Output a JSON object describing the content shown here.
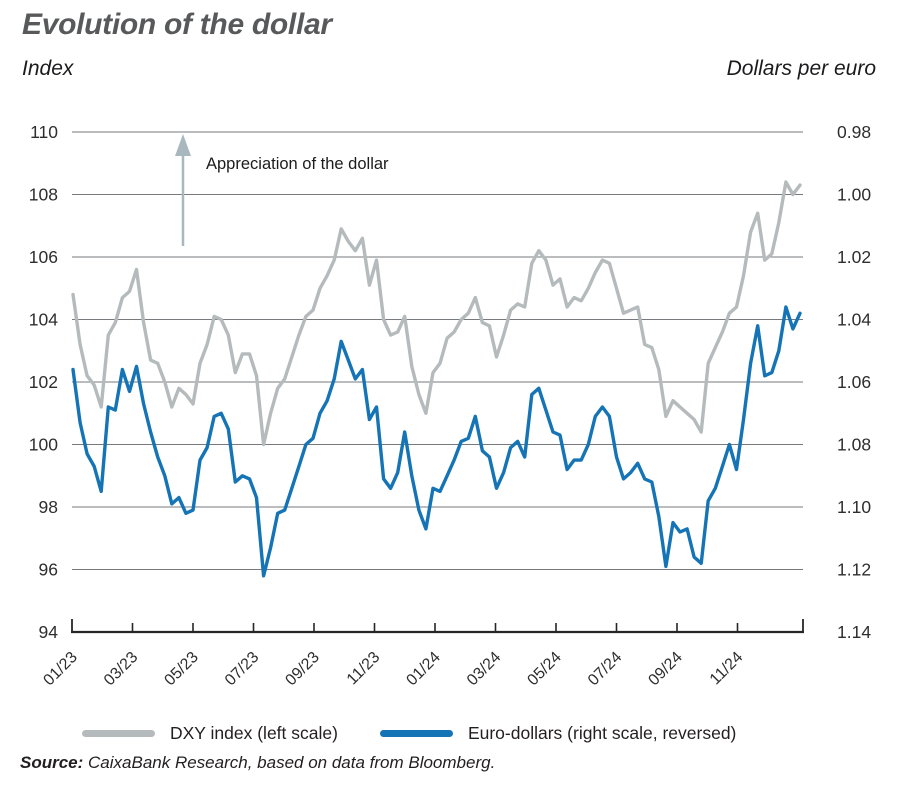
{
  "header": {
    "title": "Evolution of the dollar",
    "left_axis_title": "Index",
    "right_axis_title": "Dollars per euro"
  },
  "annotation": {
    "text": "Appreciation of the dollar"
  },
  "legend": [
    {
      "label": "DXY index (left scale)",
      "color": "#b5bbbd"
    },
    {
      "label": "Euro-dollars (right scale, reversed)",
      "color": "#1574b6"
    }
  ],
  "source": {
    "prefix": "Source:",
    "text": " CaixaBank Research, based on data from Bloomberg."
  },
  "colors": {
    "title": "#58595b",
    "text": "#231f20",
    "grid": "#77797c",
    "axis": "#262626",
    "arrow": "#a9b8bf",
    "series_gray": "#b5bbbd",
    "series_blue": "#1574b6"
  },
  "chart_data": {
    "type": "line",
    "title": "Evolution of the dollar",
    "grid": "horizontal",
    "legend_position": "bottom",
    "x_tick_labels": [
      "01/23",
      "03/23",
      "05/23",
      "07/23",
      "09/23",
      "11/23",
      "01/24",
      "03/24",
      "05/24",
      "07/24",
      "09/24",
      "11/24"
    ],
    "x_range": [
      "2023-01",
      "2024-12"
    ],
    "x_cadence": "weekly",
    "left_axis": {
      "label": "Index",
      "range": [
        94,
        110
      ],
      "ticks": [
        110,
        108,
        106,
        104,
        102,
        100,
        98,
        96,
        94
      ]
    },
    "right_axis": {
      "label": "Dollars per euro",
      "range": [
        0.98,
        1.14
      ],
      "reversed": true,
      "ticks": [
        "0.98",
        "1.00",
        "1.02",
        "1.04",
        "1.06",
        "1.08",
        "1.10",
        "1.12",
        "1.14"
      ]
    },
    "annotations": [
      {
        "text": "Appreciation of the dollar",
        "arrow": "up"
      }
    ],
    "series": [
      {
        "name": "DXY index (left scale)",
        "axis": "left",
        "color": "#b5bbbd",
        "values": [
          104.8,
          103.2,
          102.2,
          101.9,
          101.2,
          103.5,
          103.9,
          104.7,
          104.9,
          105.6,
          103.9,
          102.7,
          102.6,
          102.0,
          101.2,
          101.8,
          101.6,
          101.3,
          102.6,
          103.2,
          104.1,
          104.0,
          103.5,
          102.3,
          102.9,
          102.9,
          102.2,
          100.0,
          101.0,
          101.8,
          102.1,
          102.8,
          103.5,
          104.1,
          104.3,
          105.0,
          105.4,
          105.9,
          106.9,
          106.5,
          106.2,
          106.6,
          105.1,
          105.9,
          104.0,
          103.5,
          103.6,
          104.1,
          102.5,
          101.6,
          101.0,
          102.3,
          102.6,
          103.4,
          103.6,
          104.0,
          104.2,
          104.7,
          103.9,
          103.8,
          102.8,
          103.5,
          104.3,
          104.5,
          104.4,
          105.8,
          106.2,
          105.9,
          105.1,
          105.3,
          104.4,
          104.7,
          104.6,
          105.0,
          105.5,
          105.9,
          105.8,
          105.0,
          104.2,
          104.3,
          104.4,
          103.2,
          103.1,
          102.4,
          100.9,
          101.4,
          101.2,
          101.0,
          100.8,
          100.4,
          102.6,
          103.1,
          103.6,
          104.2,
          104.4,
          105.4,
          106.8,
          107.4,
          105.9,
          106.1,
          107.1,
          108.4,
          108.0,
          108.3
        ]
      },
      {
        "name": "Euro-dollars (right scale, reversed)",
        "axis": "right",
        "color": "#1574b6",
        "values": [
          1.056,
          1.073,
          1.083,
          1.087,
          1.095,
          1.068,
          1.069,
          1.056,
          1.063,
          1.055,
          1.067,
          1.076,
          1.084,
          1.09,
          1.099,
          1.097,
          1.102,
          1.101,
          1.085,
          1.081,
          1.071,
          1.07,
          1.075,
          1.092,
          1.09,
          1.091,
          1.097,
          1.122,
          1.113,
          1.102,
          1.101,
          1.094,
          1.087,
          1.08,
          1.078,
          1.07,
          1.066,
          1.059,
          1.047,
          1.053,
          1.059,
          1.056,
          1.072,
          1.068,
          1.091,
          1.094,
          1.089,
          1.076,
          1.09,
          1.101,
          1.107,
          1.094,
          1.095,
          1.09,
          1.085,
          1.079,
          1.078,
          1.071,
          1.082,
          1.084,
          1.094,
          1.089,
          1.081,
          1.079,
          1.084,
          1.064,
          1.062,
          1.069,
          1.076,
          1.077,
          1.088,
          1.085,
          1.085,
          1.08,
          1.071,
          1.068,
          1.071,
          1.084,
          1.091,
          1.089,
          1.086,
          1.091,
          1.092,
          1.103,
          1.119,
          1.105,
          1.108,
          1.107,
          1.116,
          1.118,
          1.098,
          1.094,
          1.087,
          1.08,
          1.088,
          1.072,
          1.054,
          1.042,
          1.058,
          1.057,
          1.05,
          1.036,
          1.043,
          1.038
        ]
      }
    ]
  }
}
